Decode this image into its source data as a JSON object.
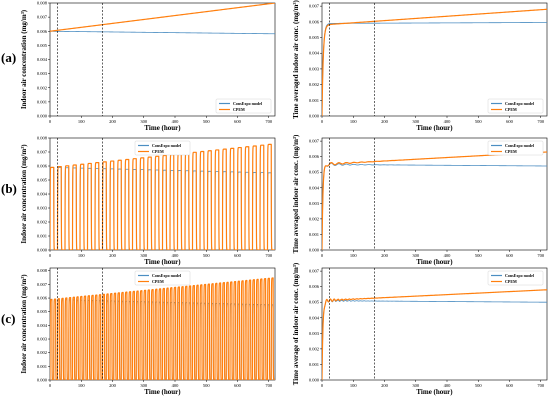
{
  "figure": {
    "panel_labels": [
      "(a)",
      "(b)",
      "(c)"
    ]
  },
  "chart_data": [
    {
      "id": "a-left",
      "type": "line",
      "scenario": "constant",
      "xlabel": "Time (hour)",
      "ylabel": "Indoor air concentration (mg/m³)",
      "xlim": [
        0,
        720
      ],
      "ylim": [
        0,
        0.008
      ],
      "xticks": [
        0,
        100,
        200,
        300,
        400,
        500,
        600,
        700
      ],
      "yticks": [
        0.0,
        0.001,
        0.002,
        0.003,
        0.004,
        0.005,
        0.006,
        0.007,
        0.008
      ],
      "ytick_labels": [
        "0.000",
        "0.001",
        "0.002",
        "0.003",
        "0.004",
        "0.005",
        "0.006",
        "0.007",
        "0.008"
      ],
      "vlines": [
        24,
        168
      ],
      "legend": {
        "position": "lower-right"
      },
      "series": [
        {
          "name": "ConsExpo model",
          "color": "#4c8ec2",
          "model": "consexpo",
          "start": 0.006,
          "end": 0.00582
        },
        {
          "name": "CPEM",
          "color": "#ff7f0e",
          "model": "cpem",
          "start": 0.006,
          "end": 0.008
        }
      ]
    },
    {
      "id": "a-right",
      "type": "line",
      "scenario": "constant",
      "xlabel": "Time (hour)",
      "ylabel": "Time averaged indoor air conc. (mg/m³)",
      "xlim": [
        0,
        720
      ],
      "ylim": [
        0,
        0.0072
      ],
      "xticks": [
        0,
        100,
        200,
        300,
        400,
        500,
        600,
        700
      ],
      "yticks": [
        0.0,
        0.001,
        0.002,
        0.003,
        0.004,
        0.005,
        0.006,
        0.007
      ],
      "ytick_labels": [
        "0.000",
        "0.001",
        "0.002",
        "0.003",
        "0.004",
        "0.005",
        "0.006",
        "0.007"
      ],
      "vlines": [
        24,
        168
      ],
      "legend": {
        "position": "lower-right"
      },
      "series": [
        {
          "name": "ConsExpo model",
          "color": "#4c8ec2",
          "model": "consexpo",
          "plateau": 0.0059
        },
        {
          "name": "CPEM",
          "color": "#ff7f0e",
          "model": "cpem",
          "start": 0.0058,
          "end": 0.0068
        }
      ]
    },
    {
      "id": "b-left",
      "type": "line",
      "scenario": "periodic-24h",
      "xlabel": "Time (hour)",
      "ylabel": "Indoor air concentration (mg/m³)",
      "xlim": [
        0,
        720
      ],
      "ylim": [
        0,
        0.008
      ],
      "xticks": [
        0,
        100,
        200,
        300,
        400,
        500,
        600,
        700
      ],
      "yticks": [
        0.0,
        0.001,
        0.002,
        0.003,
        0.004,
        0.005,
        0.006,
        0.007,
        0.008
      ],
      "ytick_labels": [
        "0.000",
        "0.001",
        "0.002",
        "0.003",
        "0.004",
        "0.005",
        "0.006",
        "0.007",
        "0.008"
      ],
      "vlines": [
        24,
        168
      ],
      "legend": {
        "position": "top-center"
      },
      "period_hours": 24,
      "series": [
        {
          "name": "ConsExpo model",
          "color": "#4c8ec2",
          "model": "consexpo",
          "peak_start": 0.0059,
          "peak_end": 0.0055
        },
        {
          "name": "CPEM",
          "color": "#ff7f0e",
          "model": "cpem",
          "peak_start": 0.0059,
          "peak_end": 0.0076
        }
      ]
    },
    {
      "id": "b-right",
      "type": "line",
      "scenario": "periodic-24h",
      "xlabel": "Time (hour)",
      "ylabel": "Time averaged indoor air conc. (mg/m³)",
      "xlim": [
        0,
        720
      ],
      "ylim": [
        0,
        0.0072
      ],
      "xticks": [
        0,
        100,
        200,
        300,
        400,
        500,
        600,
        700
      ],
      "yticks": [
        0.0,
        0.001,
        0.002,
        0.003,
        0.004,
        0.005,
        0.006,
        0.007
      ],
      "ytick_labels": [
        "0.000",
        "0.001",
        "0.002",
        "0.003",
        "0.004",
        "0.005",
        "0.006",
        "0.007"
      ],
      "vlines": [
        24,
        168
      ],
      "legend": {
        "position": "top-right"
      },
      "series": [
        {
          "name": "ConsExpo model",
          "color": "#4c8ec2",
          "model": "consexpo",
          "start": 0.0055,
          "end": 0.0054
        },
        {
          "name": "CPEM",
          "color": "#ff7f0e",
          "model": "cpem",
          "start": 0.0055,
          "end": 0.0063
        }
      ]
    },
    {
      "id": "c-left",
      "type": "line",
      "scenario": "periodic-12h",
      "xlabel": "Time (hour)",
      "ylabel": "Indoor air concentration (mg/m³)",
      "xlim": [
        0,
        720
      ],
      "ylim": [
        0,
        0.0082
      ],
      "xticks": [
        0,
        100,
        200,
        300,
        400,
        500,
        600,
        700
      ],
      "yticks": [
        0.0,
        0.001,
        0.002,
        0.003,
        0.004,
        0.005,
        0.006,
        0.007,
        0.008
      ],
      "ytick_labels": [
        "0.000",
        "0.001",
        "0.002",
        "0.003",
        "0.004",
        "0.005",
        "0.006",
        "0.007",
        "0.008"
      ],
      "vlines": [
        24,
        168
      ],
      "legend": {
        "position": "top-center"
      },
      "period_hours": 12,
      "series": [
        {
          "name": "ConsExpo model",
          "color": "#4c8ec2",
          "model": "consexpo",
          "peak_start": 0.0059,
          "peak_end": 0.0055
        },
        {
          "name": "CPEM",
          "color": "#ff7f0e",
          "model": "cpem",
          "peak_start": 0.0059,
          "peak_end": 0.0075
        }
      ]
    },
    {
      "id": "c-right",
      "type": "line",
      "scenario": "periodic-12h",
      "xlabel": "Time (hour)",
      "ylabel": "Time average of indoor air conc. (mg/m³)",
      "xlim": [
        0,
        720
      ],
      "ylim": [
        0,
        0.0072
      ],
      "xticks": [
        0,
        100,
        200,
        300,
        400,
        500,
        600,
        700
      ],
      "yticks": [
        0.0,
        0.001,
        0.002,
        0.003,
        0.004,
        0.005,
        0.006,
        0.007
      ],
      "ytick_labels": [
        "0.000",
        "0.001",
        "0.002",
        "0.003",
        "0.004",
        "0.005",
        "0.006",
        "0.007"
      ],
      "vlines": [
        24,
        168
      ],
      "legend": {
        "position": "top-right"
      },
      "series": [
        {
          "name": "ConsExpo model",
          "color": "#4c8ec2",
          "model": "consexpo",
          "start": 0.0051,
          "end": 0.005
        },
        {
          "name": "CPEM",
          "color": "#ff7f0e",
          "model": "cpem",
          "start": 0.0051,
          "end": 0.0058
        }
      ]
    }
  ]
}
